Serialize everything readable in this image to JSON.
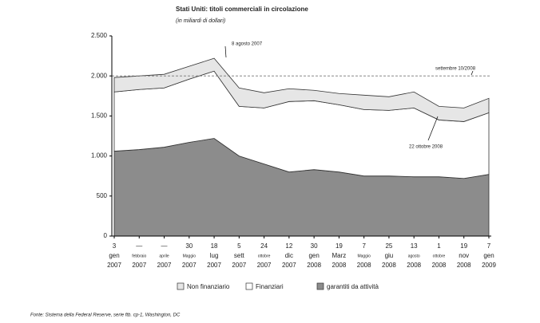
{
  "chart_data": {
    "type": "stacked_area",
    "title": "Stati Uniti: titoli commerciali in circolazione",
    "subtitle": "(in miliardi di dollari)",
    "categories": [
      [
        "3",
        "gen",
        "2007"
      ],
      [
        "—",
        "febbraio",
        "2007"
      ],
      [
        "—",
        "aprile",
        "2007"
      ],
      [
        "30",
        "Maggio",
        "2007"
      ],
      [
        "18",
        "lug",
        "2007"
      ],
      [
        "5",
        "sett",
        "2007"
      ],
      [
        "24",
        "ottobre",
        "2007"
      ],
      [
        "12",
        "dic",
        "2007"
      ],
      [
        "30",
        "gen",
        "2008"
      ],
      [
        "19",
        "Marz",
        "2008"
      ],
      [
        "7",
        "Maggio",
        "2008"
      ],
      [
        "25",
        "giu",
        "2008"
      ],
      [
        "13",
        "agosto",
        "2008"
      ],
      [
        "1",
        "ottobre",
        "2008"
      ],
      [
        "19",
        "nov",
        "2008"
      ],
      [
        "7",
        "gen",
        "2009"
      ]
    ],
    "series": [
      {
        "name": "garantiti da attività",
        "color": "#8c8c8c",
        "values": [
          1060,
          1080,
          1110,
          1170,
          1220,
          1000,
          900,
          800,
          830,
          800,
          750,
          750,
          740,
          740,
          720,
          770
        ]
      },
      {
        "name": "Finanziari",
        "color": "#ffffff",
        "values": [
          740,
          750,
          740,
          790,
          840,
          620,
          700,
          880,
          860,
          840,
          830,
          820,
          860,
          710,
          710,
          770
        ]
      },
      {
        "name": "Non finanziario",
        "color": "#e6e6e6",
        "values": [
          180,
          170,
          170,
          160,
          160,
          230,
          190,
          160,
          130,
          140,
          180,
          170,
          200,
          170,
          170,
          180
        ]
      }
    ],
    "ylim": [
      0,
      2500
    ],
    "yticks": [
      0,
      500,
      {
        "value": 1000,
        "label": "1.000"
      },
      {
        "value": 1500,
        "label": "1.500"
      },
      {
        "value": 2000,
        "label": "2.000"
      },
      {
        "value": 2500,
        "label": "2.500"
      }
    ],
    "reference_line": 2000,
    "annotations": [
      "8 agosto 2007",
      "settembre 10/2008",
      "22 ottobre 2008"
    ],
    "source": "Fonte: Sistema della Federal Reserve, serie ftb. cp-1, Washington, DC"
  }
}
